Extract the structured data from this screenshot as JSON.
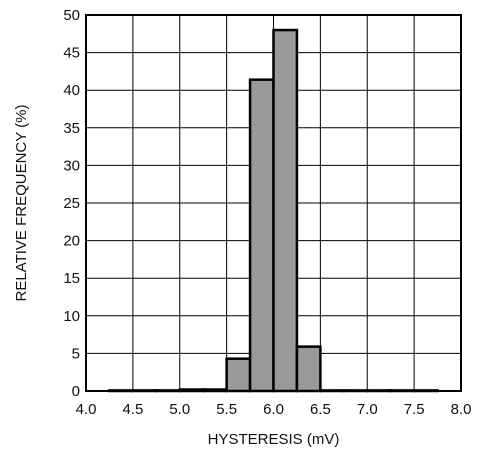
{
  "chart_data": {
    "type": "bar",
    "title": "",
    "xlabel": "HYSTERESIS (mV)",
    "ylabel": "RELATIVE FREQUENCY (%)",
    "xlim": [
      4.0,
      8.0
    ],
    "ylim": [
      0,
      50
    ],
    "x_ticks": [
      "4.0",
      "4.5",
      "5.0",
      "5.5",
      "6.0",
      "6.5",
      "7.0",
      "7.5",
      "8.0"
    ],
    "y_ticks": [
      "0",
      "5",
      "10",
      "15",
      "20",
      "25",
      "30",
      "35",
      "40",
      "45",
      "50"
    ],
    "bin_width": 0.25,
    "bins": [
      {
        "start": 4.25,
        "value": 0.05
      },
      {
        "start": 4.5,
        "value": 0.05
      },
      {
        "start": 4.75,
        "value": 0.05
      },
      {
        "start": 5.0,
        "value": 0.2
      },
      {
        "start": 5.25,
        "value": 0.2
      },
      {
        "start": 5.5,
        "value": 4.3
      },
      {
        "start": 5.75,
        "value": 41.4
      },
      {
        "start": 6.0,
        "value": 48.0
      },
      {
        "start": 6.25,
        "value": 5.9
      },
      {
        "start": 6.5,
        "value": 0.05
      },
      {
        "start": 6.75,
        "value": 0.05
      },
      {
        "start": 7.0,
        "value": 0.05
      },
      {
        "start": 7.25,
        "value": 0.05
      },
      {
        "start": 7.5,
        "value": 0.05
      }
    ],
    "grid": true,
    "bar_color": "#999999",
    "edge_color": "#000000"
  }
}
